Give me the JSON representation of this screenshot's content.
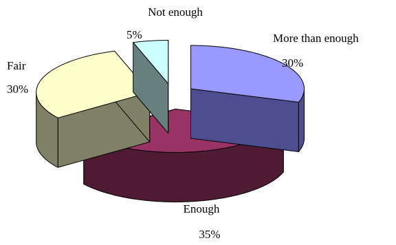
{
  "chart_data": {
    "type": "pie",
    "style": "3d-exploded",
    "slices": [
      {
        "label": "More than enough",
        "value": 30,
        "percent_label": "30%",
        "top_color": "#9999ff",
        "side_color": "#4d4d8f"
      },
      {
        "label": "Enough",
        "value": 35,
        "percent_label": "35%",
        "top_color": "#993366",
        "side_color": "#4f1a33"
      },
      {
        "label": "Fair",
        "value": 30,
        "percent_label": "30%",
        "top_color": "#ffffcc",
        "side_color": "#808066"
      },
      {
        "label": "Not enough",
        "value": 5,
        "percent_label": "5%",
        "top_color": "#ccffff",
        "side_color": "#668080"
      }
    ],
    "title": "",
    "legend": "none"
  }
}
